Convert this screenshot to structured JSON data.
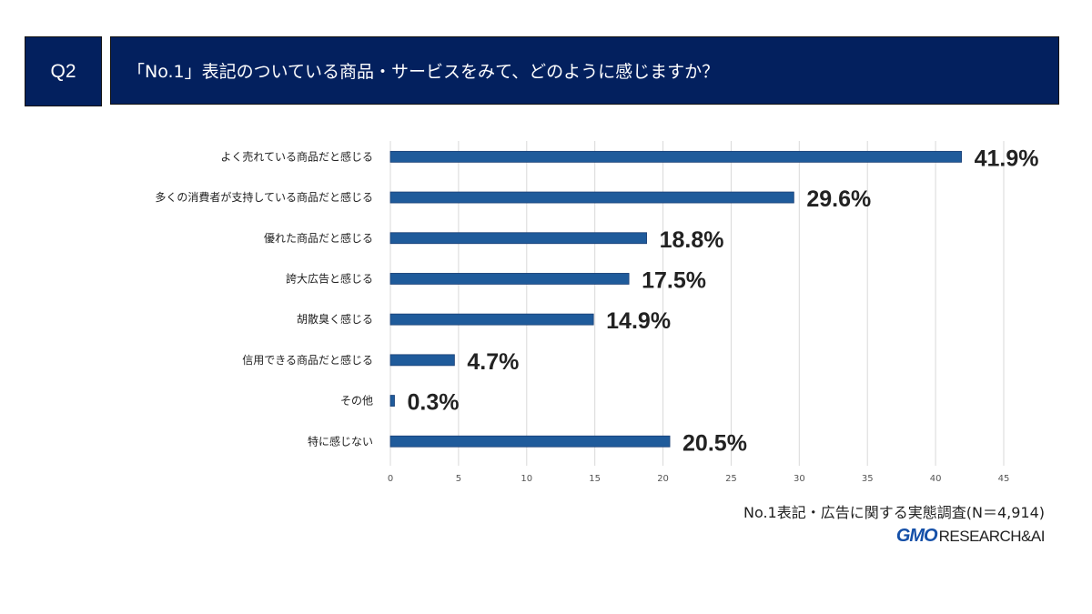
{
  "header": {
    "q_label": "Q2",
    "title": "「No.1」表記のついている商品・サービスをみて、どのように感じますか？"
  },
  "chart_data": {
    "type": "bar",
    "orientation": "horizontal",
    "categories": [
      "よく売れている商品だと感じる",
      "多くの消費者が支持している商品だと感じる",
      "優れた商品だと感じる",
      "誇大広告と感じる",
      "胡散臭く感じる",
      "信用できる商品だと感じる",
      "その他",
      "特に感じない"
    ],
    "values": [
      41.9,
      29.6,
      18.8,
      17.5,
      14.9,
      4.7,
      0.3,
      20.5
    ],
    "data_labels": [
      "41.9%",
      "29.6%",
      "18.8%",
      "17.5%",
      "14.9%",
      "4.7%",
      "0.3%",
      "20.5%"
    ],
    "xlim": [
      0,
      45
    ],
    "xticks": [
      "0",
      "5",
      "10",
      "15",
      "20",
      "25",
      "30",
      "35",
      "40",
      "45"
    ],
    "grid": true,
    "bar_color": "#1f5b9b"
  },
  "footer": {
    "source": "No.1表記・広告に関する実態調査(N＝4,914)",
    "logo_gmo": "GMO",
    "logo_rest": "RESEARCH&AI"
  }
}
